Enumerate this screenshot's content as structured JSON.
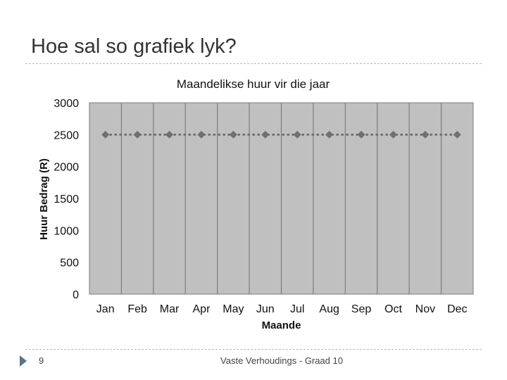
{
  "slide": {
    "title": "Hoe sal so grafiek lyk?",
    "page_number": "9",
    "footer": "Vaste Verhoudings - Graad 10"
  },
  "colors": {
    "plot_bg": "#c0c0c0",
    "grid": "#7d7d7d",
    "series": "#707070",
    "accent": "#5a7487"
  },
  "chart_data": {
    "type": "line",
    "title": "Maandelikse huur vir die jaar",
    "xlabel": "Maande",
    "ylabel": "Huur Bedrag (R)",
    "categories": [
      "Jan",
      "Feb",
      "Mar",
      "Apr",
      "May",
      "Jun",
      "Jul",
      "Aug",
      "Sep",
      "Oct",
      "Nov",
      "Dec"
    ],
    "series": [
      {
        "values": [
          2500,
          2500,
          2500,
          2500,
          2500,
          2500,
          2500,
          2500,
          2500,
          2500,
          2500,
          2500
        ]
      }
    ],
    "ylim": [
      0,
      3000
    ],
    "yticks": [
      "0",
      "500",
      "1000",
      "1500",
      "2000",
      "2500",
      "3000"
    ],
    "marker": "diamond",
    "line_style": "dotted",
    "grid": "vertical"
  }
}
